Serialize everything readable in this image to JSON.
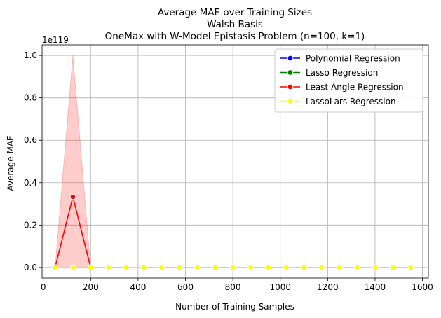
{
  "chart_data": {
    "type": "line",
    "title_lines": [
      "Average MAE over Training Sizes",
      "Walsh Basis",
      "OneMax with W-Model Epistasis Problem (n=100, k=1)"
    ],
    "xlabel": "Number of Training Samples",
    "ylabel": "Average MAE",
    "y_offset_label": "1e119",
    "xlim": [
      -5,
      1625
    ],
    "ylim": [
      -0.05,
      1.05
    ],
    "x_ticks": [
      0,
      200,
      400,
      600,
      800,
      1000,
      1200,
      1400,
      1600
    ],
    "y_ticks": [
      0.0,
      0.2,
      0.4,
      0.6,
      0.8,
      1.0
    ],
    "y_tick_labels": [
      "0.0",
      "0.2",
      "0.4",
      "0.6",
      "0.8",
      "1.0"
    ],
    "grid": true,
    "legend_position": "top-right",
    "x": [
      50,
      125,
      200,
      275,
      350,
      425,
      500,
      575,
      650,
      725,
      800,
      875,
      950,
      1025,
      1100,
      1175,
      1250,
      1325,
      1400,
      1475,
      1550
    ],
    "series": [
      {
        "name": "Polynomial Regression",
        "color": "#0000ff",
        "values": [
          0,
          0,
          0,
          0,
          0,
          0,
          0,
          0,
          0,
          0,
          0,
          0,
          0,
          0,
          0,
          0,
          0,
          0,
          0,
          0,
          0
        ]
      },
      {
        "name": "Lasso Regression",
        "color": "#008000",
        "values": [
          0,
          0,
          0,
          0,
          0,
          0,
          0,
          0,
          0,
          0,
          0,
          0,
          0,
          0,
          0,
          0,
          0,
          0,
          0,
          0,
          0
        ]
      },
      {
        "name": "Least Angle Regression",
        "color": "#ff0000",
        "x": [
          50,
          125,
          200
        ],
        "values": [
          0.0,
          0.333,
          0.0
        ],
        "ci_upper": [
          0.0,
          1.0,
          0.0
        ],
        "ci_lower": [
          0.0,
          0.0,
          0.0
        ]
      },
      {
        "name": "LassoLars Regression",
        "color": "#ffff00",
        "values": [
          0,
          0,
          0,
          0,
          0,
          0,
          0,
          0,
          0,
          0,
          0,
          0,
          0,
          0,
          0,
          0,
          0,
          0,
          0,
          0,
          0
        ]
      }
    ]
  }
}
